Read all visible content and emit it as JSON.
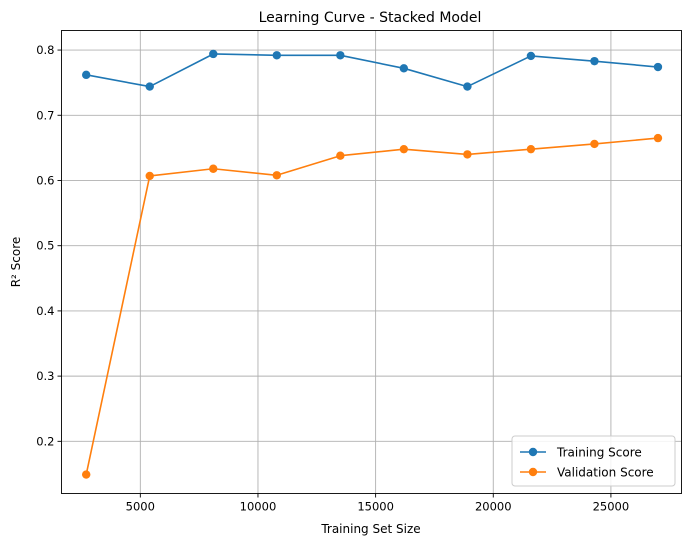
{
  "chart_data": {
    "type": "line",
    "title": "Learning Curve - Stacked Model",
    "xlabel": "Training Set Size",
    "ylabel": "R² Score",
    "xlim": [
      1650,
      28000
    ],
    "ylim": [
      0.12,
      0.83
    ],
    "xticks": [
      5000,
      10000,
      15000,
      20000,
      25000
    ],
    "yticks": [
      0.2,
      0.3,
      0.4,
      0.5,
      0.6,
      0.7,
      0.8
    ],
    "grid": true,
    "legend_position": "lower-right",
    "x": [
      2700,
      5400,
      8100,
      10800,
      13500,
      16200,
      18900,
      21600,
      24300,
      27000
    ],
    "series": [
      {
        "name": "Training Score",
        "color": "#1f77b4",
        "marker": "circle",
        "values": [
          0.762,
          0.744,
          0.794,
          0.792,
          0.792,
          0.772,
          0.744,
          0.791,
          0.783,
          0.774
        ]
      },
      {
        "name": "Validation Score",
        "color": "#ff7f0e",
        "marker": "circle",
        "values": [
          0.149,
          0.607,
          0.618,
          0.608,
          0.638,
          0.648,
          0.64,
          0.648,
          0.656,
          0.665
        ]
      }
    ]
  }
}
